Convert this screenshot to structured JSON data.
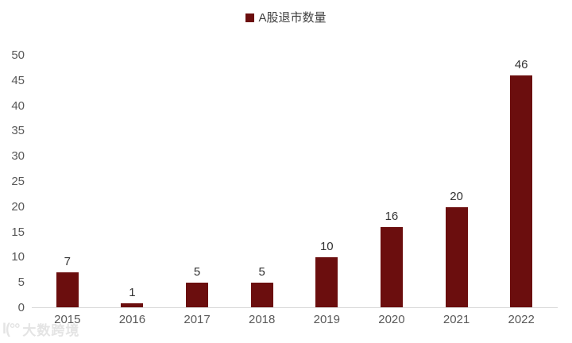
{
  "chart_data": {
    "type": "bar",
    "title": "",
    "legend": [
      "A股退市数量"
    ],
    "legend_position": "top-center",
    "categories": [
      "2015",
      "2016",
      "2017",
      "2018",
      "2019",
      "2020",
      "2021",
      "2022"
    ],
    "values": [
      7,
      1,
      5,
      5,
      10,
      16,
      20,
      46
    ],
    "xlabel": "",
    "ylabel": "",
    "ylim": [
      0,
      50
    ],
    "yticks": [
      0,
      5,
      10,
      15,
      20,
      25,
      30,
      35,
      40,
      45,
      50
    ],
    "grid": "off",
    "bar_color": "#6B0E0E",
    "value_label_color": "#333333",
    "axis_label_color": "#595959",
    "axis_line_color": "#D9D9D9"
  },
  "watermark": {
    "icon_glyph": "l(°°",
    "text": "大数跨境",
    "color": "#E4E4E4"
  }
}
